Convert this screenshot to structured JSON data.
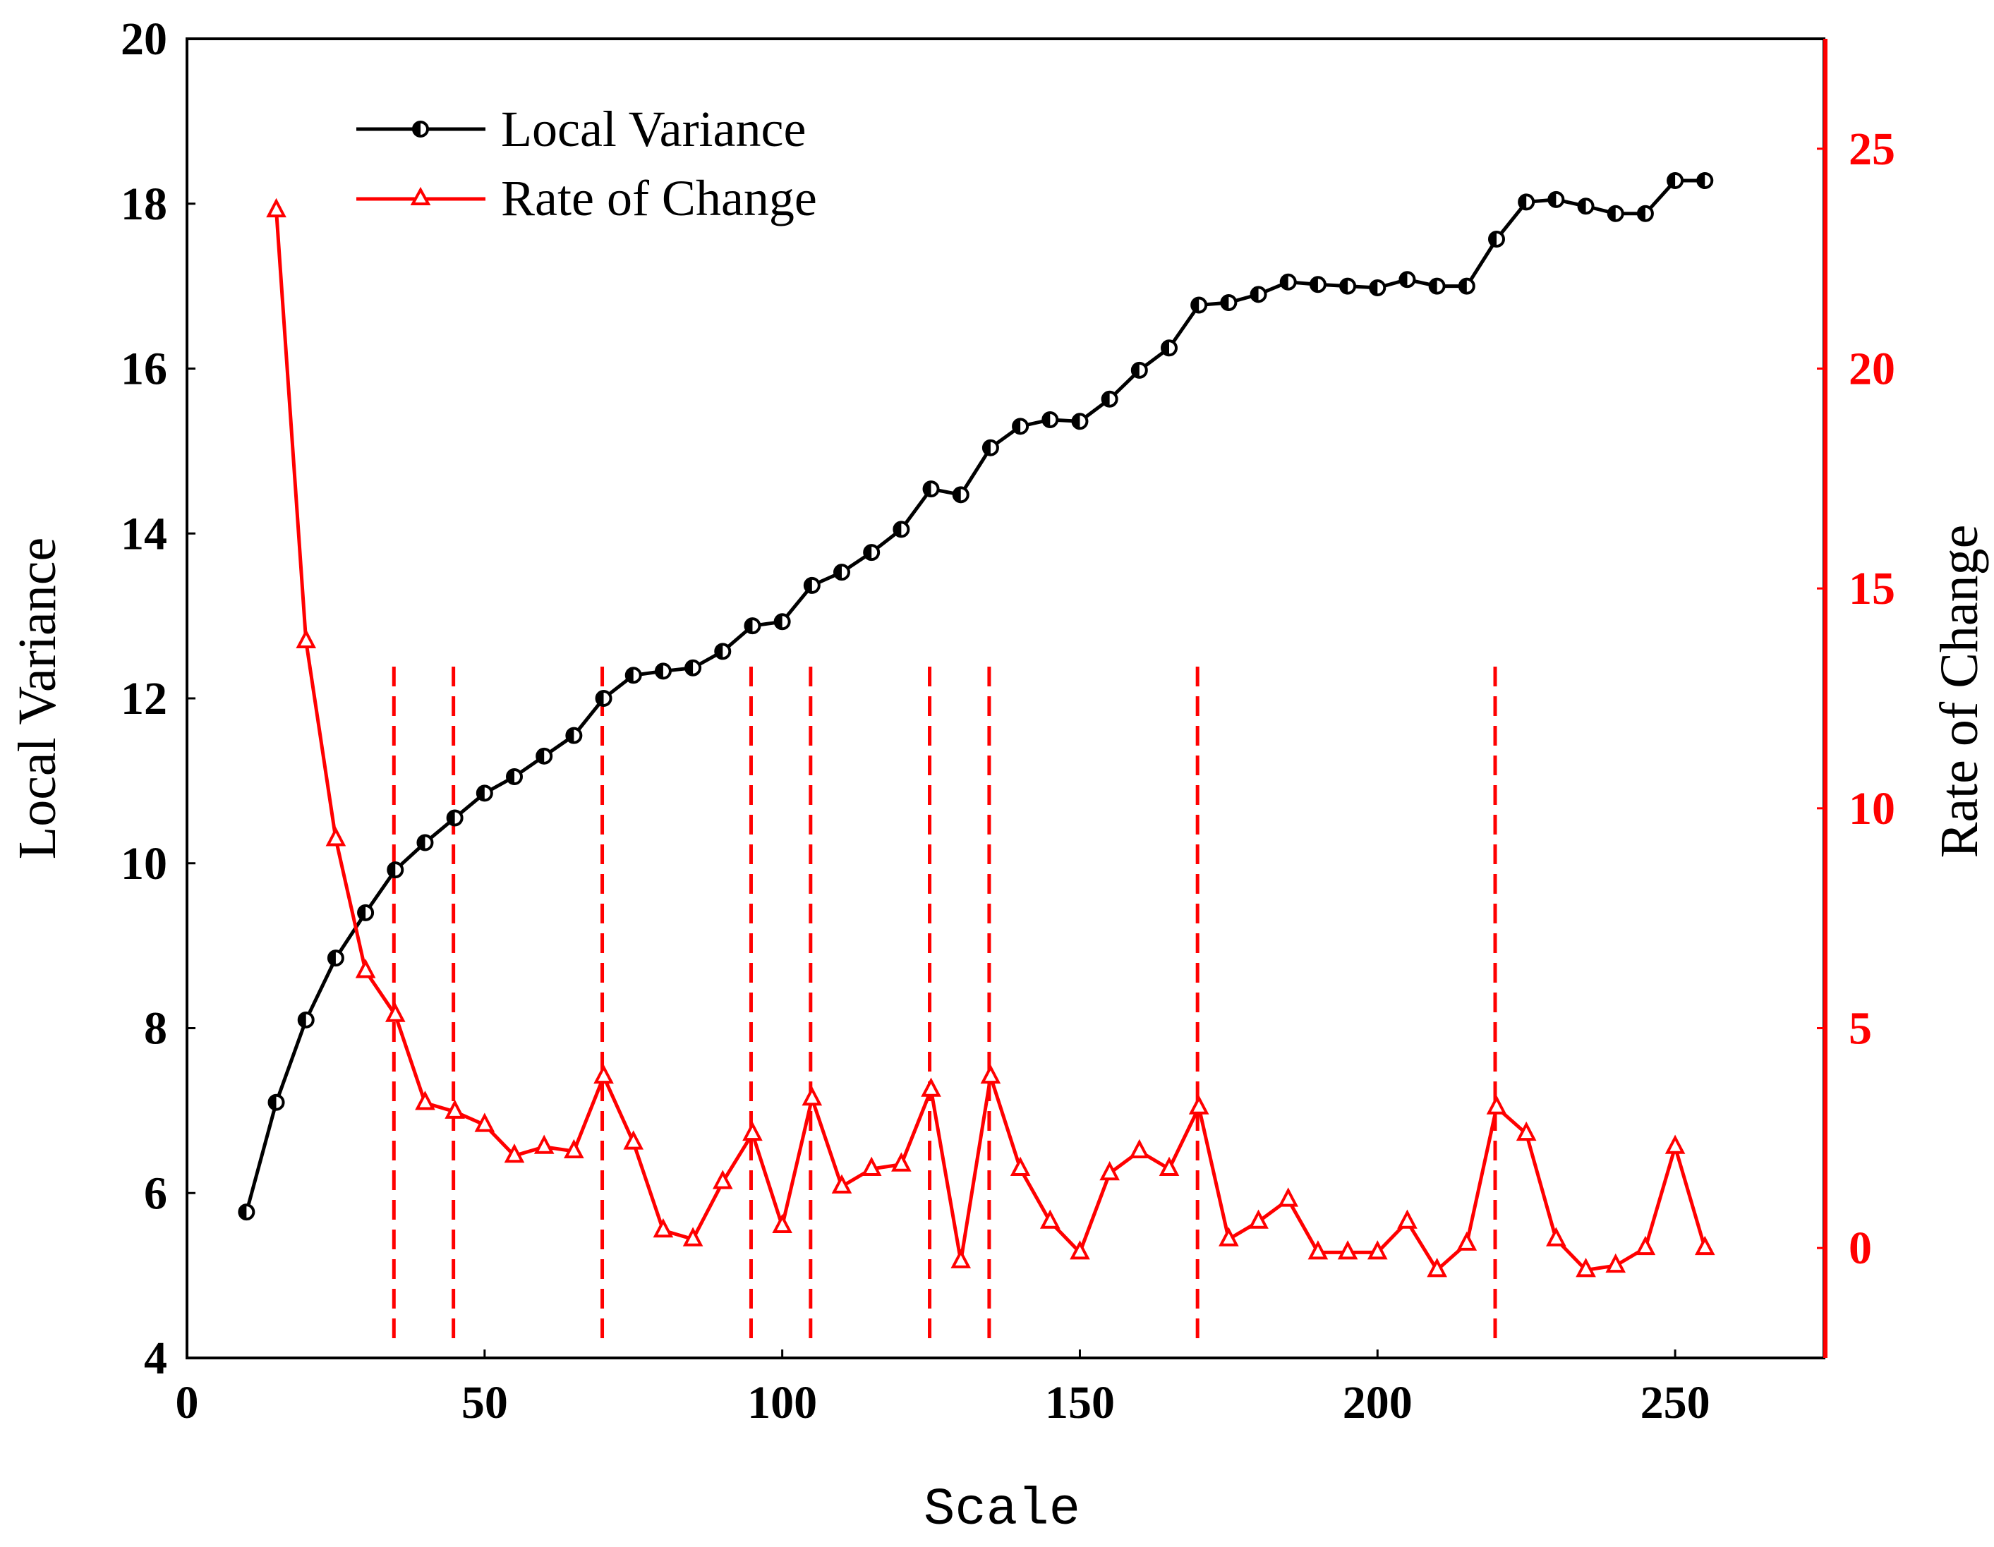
{
  "chart_data": {
    "type": "line",
    "title": "",
    "xlabel": "Scale",
    "ylabel": "Local Variance",
    "ylabel_right": "Rate of Change",
    "xlim": [
      0,
      275
    ],
    "ylim": [
      4,
      20
    ],
    "ylim_right": [
      -2.5,
      27.5
    ],
    "x_ticks": [
      "0",
      "50",
      "100",
      "150",
      "200",
      "250"
    ],
    "y_ticks": [
      "4",
      "6",
      "8",
      "10",
      "12",
      "14",
      "16",
      "18",
      "20"
    ],
    "y_ticks_right": [
      "0",
      "5",
      "10",
      "15",
      "20",
      "25"
    ],
    "legend": {
      "position": "top-left",
      "entries": [
        "Local Variance",
        "Rate of Change"
      ]
    },
    "series": [
      {
        "name": "Local Variance",
        "axis": "left",
        "color": "#000000",
        "marker": "half-filled-circle",
        "x": [
          10,
          15,
          20,
          25,
          30,
          35,
          40,
          45,
          50,
          55,
          60,
          65,
          70,
          75,
          80,
          85,
          90,
          95,
          100,
          105,
          110,
          115,
          120,
          125,
          130,
          135,
          140,
          145,
          150,
          155,
          160,
          165,
          170,
          175,
          180,
          185,
          190,
          195,
          200,
          205,
          210,
          215,
          220,
          225,
          230,
          235,
          240,
          245,
          250,
          255
        ],
        "values": [
          5.77,
          7.1,
          8.1,
          8.85,
          9.4,
          9.92,
          10.25,
          10.55,
          10.85,
          11.05,
          11.3,
          11.55,
          12.0,
          12.28,
          12.33,
          12.37,
          12.57,
          12.88,
          12.93,
          13.37,
          13.53,
          13.77,
          14.05,
          14.54,
          14.47,
          15.04,
          15.3,
          15.38,
          15.36,
          15.63,
          15.98,
          16.25,
          16.77,
          16.8,
          16.9,
          17.05,
          17.02,
          17.0,
          16.98,
          17.08,
          17.0,
          17.0,
          17.57,
          18.02,
          18.05,
          17.97,
          17.88,
          17.88,
          18.28,
          18.28
        ]
      },
      {
        "name": "Rate of Change",
        "axis": "right",
        "color": "#ff0000",
        "marker": "open-triangle",
        "x": [
          15,
          20,
          25,
          30,
          35,
          40,
          45,
          50,
          55,
          60,
          65,
          70,
          75,
          80,
          85,
          90,
          95,
          100,
          105,
          110,
          115,
          120,
          125,
          130,
          135,
          140,
          145,
          150,
          155,
          160,
          165,
          170,
          175,
          180,
          185,
          190,
          195,
          200,
          205,
          210,
          215,
          220,
          225,
          230,
          235,
          240,
          245,
          250,
          255
        ],
        "values": [
          23.6,
          13.8,
          9.3,
          6.3,
          5.3,
          3.3,
          3.1,
          2.8,
          2.1,
          2.3,
          2.2,
          3.9,
          2.4,
          0.4,
          0.2,
          1.5,
          2.6,
          0.5,
          3.4,
          1.4,
          1.8,
          1.9,
          3.6,
          -0.3,
          3.9,
          1.8,
          0.6,
          -0.1,
          1.7,
          2.2,
          1.8,
          3.2,
          0.2,
          0.6,
          1.1,
          -0.1,
          -0.1,
          -0.1,
          0.6,
          -0.5,
          0.1,
          3.2,
          2.6,
          0.2,
          -0.5,
          -0.4,
          0.0,
          2.3,
          0.0
        ]
      }
    ],
    "vertical_markers": [
      35,
      45,
      70,
      95,
      105,
      125,
      135,
      170,
      220
    ]
  }
}
